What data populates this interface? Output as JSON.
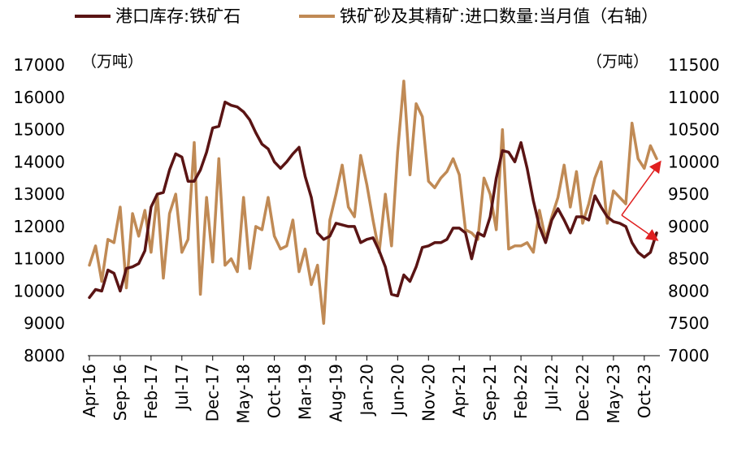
{
  "chart_data": {
    "type": "line",
    "legend": {
      "placement": "top",
      "items": [
        {
          "label": "港口库存:铁矿石",
          "color": "#5a1414",
          "axis": "left"
        },
        {
          "label": "铁矿砂及其精矿:进口数量:当月值（右轴）",
          "color": "#c08a55",
          "axis": "right"
        }
      ]
    },
    "left_axis": {
      "unit": "（万吨）",
      "ylim": [
        8000,
        17000
      ],
      "ticks": [
        "8000",
        "9000",
        "10000",
        "11000",
        "12000",
        "13000",
        "14000",
        "15000",
        "16000",
        "17000"
      ]
    },
    "right_axis": {
      "unit": "（万吨）",
      "ylim": [
        7000,
        11500
      ],
      "ticks": [
        "7000",
        "7500",
        "8000",
        "8500",
        "9000",
        "9500",
        "10000",
        "10500",
        "11000",
        "11500"
      ]
    },
    "x_ticks": [
      "Apr-16",
      "Sep-16",
      "Feb-17",
      "Jul-17",
      "Dec-17",
      "May-18",
      "Oct-18",
      "Mar-19",
      "Aug-19",
      "Jan-20",
      "Jun-20",
      "Nov-20",
      "Apr-21",
      "Sep-21",
      "Feb-22",
      "Jul-22",
      "Dec-22",
      "May-23",
      "Oct-23"
    ],
    "x_start": "2016-04",
    "series": [
      {
        "name": "港口库存:铁矿石",
        "axis": "left",
        "color": "#5a1414",
        "values": [
          9800,
          10050,
          10000,
          10650,
          10550,
          10000,
          10700,
          10750,
          10850,
          11250,
          12600,
          13000,
          13050,
          13750,
          14250,
          14150,
          13400,
          13400,
          13750,
          14300,
          15050,
          15100,
          15850,
          15750,
          15700,
          15550,
          15300,
          14900,
          14550,
          14400,
          14000,
          13800,
          14000,
          14250,
          14450,
          13550,
          12900,
          11800,
          11600,
          11700,
          12100,
          12050,
          12000,
          12000,
          11500,
          11600,
          11650,
          11250,
          10750,
          9900,
          9850,
          10500,
          10300,
          10750,
          11350,
          11400,
          11500,
          11500,
          11600,
          11950,
          11950,
          11800,
          11000,
          11800,
          11700,
          12300,
          13500,
          14350,
          14300,
          14000,
          14600,
          13800,
          12800,
          12000,
          11500,
          12200,
          12550,
          12200,
          11800,
          12300,
          12300,
          12200,
          12950,
          12600,
          12300,
          12150,
          12100,
          12000,
          11500,
          11200,
          11050,
          11200,
          11800
        ]
      },
      {
        "name": "铁矿砂及其精矿:进口数量:当月值（右轴）",
        "axis": "right",
        "color": "#c08a55",
        "values": [
          8400,
          8700,
          8150,
          8800,
          8750,
          9300,
          8050,
          9200,
          8850,
          9250,
          8600,
          9500,
          8200,
          9200,
          9500,
          8600,
          8800,
          10300,
          7950,
          9450,
          8450,
          10050,
          8400,
          8500,
          8300,
          9450,
          8350,
          9000,
          8950,
          9450,
          8850,
          8650,
          8700,
          9100,
          8300,
          8650,
          8100,
          8400,
          7500,
          9100,
          9500,
          9950,
          9300,
          9150,
          10100,
          9650,
          9100,
          8600,
          9500,
          8700,
          10150,
          11250,
          9800,
          10900,
          10700,
          9700,
          9600,
          9750,
          9850,
          10050,
          9800,
          8950,
          8900,
          8800,
          9750,
          9500,
          8950,
          10500,
          8650,
          8700,
          8700,
          8750,
          8600,
          9250,
          8800,
          9150,
          9450,
          9950,
          9300,
          9850,
          9050,
          9350,
          9750,
          10000,
          9050,
          9550,
          9450,
          9350,
          10600,
          10050,
          9900,
          10250,
          10050
        ]
      }
    ]
  }
}
